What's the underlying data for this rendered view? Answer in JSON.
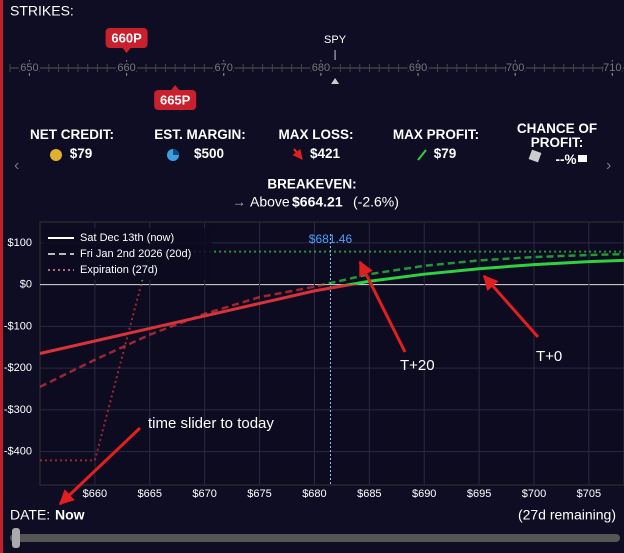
{
  "header": {
    "title": "STRIKES:"
  },
  "ruler": {
    "underlying": "SPY",
    "xlim": [
      648,
      711.2
    ],
    "ticks": [
      650,
      660,
      670,
      680,
      690,
      700,
      710
    ],
    "strikes": [
      {
        "value": 660,
        "label": "660P"
      },
      {
        "value": 665,
        "label": "665P"
      }
    ]
  },
  "stats": [
    {
      "label": "NET CREDIT:",
      "value": "$79"
    },
    {
      "label": "EST. MARGIN:",
      "value": "$500"
    },
    {
      "label": "MAX LOSS:",
      "value": "$421"
    },
    {
      "label": "MAX PROFIT:",
      "value": "$79"
    },
    {
      "label": "CHANCE OF PROFIT:",
      "value": "--%"
    }
  ],
  "breakeven": {
    "label": "BREAKEVEN:",
    "prefix": "Above",
    "price": "$664.21",
    "change": "(-2.6%)"
  },
  "payoff_chart": {
    "type": "line",
    "xlim": [
      655,
      708.2
    ],
    "ylim": [
      -480,
      150
    ],
    "xticks": [
      {
        "value": 660,
        "label": "$660"
      },
      {
        "value": 665,
        "label": "$665"
      },
      {
        "value": 670,
        "label": "$670"
      },
      {
        "value": 675,
        "label": "$675"
      },
      {
        "value": 680,
        "label": "$680"
      },
      {
        "value": 685,
        "label": "$685"
      },
      {
        "value": 690,
        "label": "$690"
      },
      {
        "value": 695,
        "label": "$695"
      },
      {
        "value": 700,
        "label": "$700"
      },
      {
        "value": 705,
        "label": "$705"
      }
    ],
    "yticks": [
      {
        "value": 100,
        "label": "$100"
      },
      {
        "value": 0,
        "label": "$0"
      },
      {
        "value": -100,
        "label": "-$100"
      },
      {
        "value": -200,
        "label": "-$200"
      },
      {
        "value": -300,
        "label": "-$300"
      },
      {
        "value": -400,
        "label": "-$400"
      }
    ],
    "price": {
      "value": 681.46,
      "label": "$681.46"
    },
    "series": [
      {
        "name": "Sat Dec 13th (now)",
        "style": "solid",
        "x": [
          655,
          660,
          665,
          670,
          675,
          680,
          685,
          690,
          695,
          700,
          705,
          708.2
        ],
        "values": [
          -165,
          -135,
          -105,
          -75,
          -45,
          -15,
          8,
          25,
          38,
          48,
          55,
          58
        ]
      },
      {
        "name": "Fri Jan 2nd 2026 (20d)",
        "style": "dashed",
        "x": [
          655,
          660,
          665,
          670,
          675,
          680,
          685,
          690,
          695,
          700,
          705,
          708.2
        ],
        "values": [
          -245,
          -180,
          -120,
          -70,
          -30,
          -5,
          25,
          45,
          58,
          66,
          71,
          73
        ]
      },
      {
        "name": "Expiration (27d)",
        "style": "dotted",
        "x": [
          655,
          660,
          665,
          708.2
        ],
        "values": [
          -421,
          -421,
          79,
          79
        ]
      }
    ],
    "annotations": [
      "T+20",
      "T+0",
      "time slider to today"
    ]
  },
  "footer": {
    "date_label": "DATE:",
    "date_value": "Now",
    "remaining": "(27d remaining)"
  }
}
